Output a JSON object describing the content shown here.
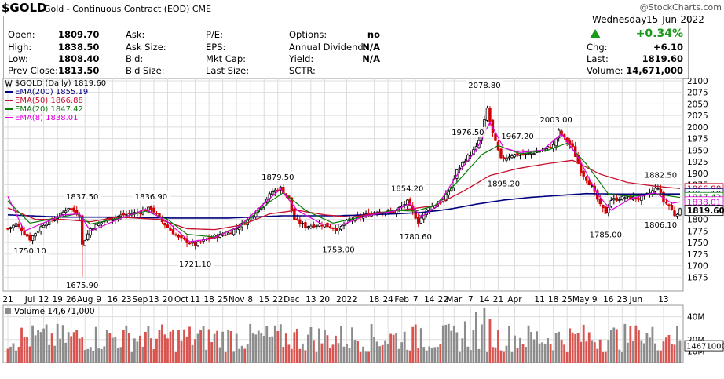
{
  "header": {
    "symbol": "$GOLD",
    "title": "Gold - Continuous Contract (EOD)",
    "exchange": "CME",
    "credit": "@StockCharts.com",
    "day": "Wednesday",
    "date": "15-Jun-2022",
    "pct_change": "+0.34%",
    "up_arrow_icon": "triangle-up",
    "up_color": "#1a9a1a"
  },
  "quote": {
    "open_label": "Open:",
    "open": "1809.70",
    "high_label": "High:",
    "high": "1838.50",
    "low_label": "Low:",
    "low": "1808.40",
    "prev_label": "Prev Close:",
    "prev": "1813.50",
    "ask_label": "Ask:",
    "ask_size_label": "Ask Size:",
    "bid_label": "Bid:",
    "bid_size_label": "Bid Size:",
    "pe_label": "P/E:",
    "eps_label": "EPS:",
    "mktcap_label": "Mkt Cap:",
    "last_size_label": "Last Size:",
    "options_label": "Options:",
    "options": "no",
    "div_label": "Annual Dividend:",
    "div": "N/A",
    "yield_label": "Yield:",
    "yield": "N/A",
    "sctr_label": "SCTR:",
    "chg_label": "Chg:",
    "chg": "+6.10",
    "last_label": "Last:",
    "last": "1819.60",
    "volume_label": "Volume:",
    "volume": "14,671,000"
  },
  "legend": [
    {
      "text": "$GOLD (Daily) 1819.60",
      "color": "#000000"
    },
    {
      "text": "EMA(200) 1855.19",
      "color": "#00007f"
    },
    {
      "text": "EMA(50) 1866.88",
      "color": "#c8102e"
    },
    {
      "text": "EMA(20) 1847.42",
      "color": "#0a7a0a"
    },
    {
      "text": "EMA(8) 1838.01",
      "color": "#e000e0"
    }
  ],
  "volume_legend": "Volume 14,671,000",
  "colors": {
    "up": "#000000",
    "down": "#d00000",
    "vol_up": "#8c8c8c",
    "vol_down": "#d9534f",
    "grid": "#dddddd"
  },
  "chart_data": [
    {
      "type": "candlestick",
      "title": "$GOLD (Daily)",
      "ylim": [
        1645,
        2105
      ],
      "yticks": [
        1675,
        1700,
        1725,
        1750,
        1775,
        1800,
        1825,
        1850,
        1875,
        1900,
        1925,
        1950,
        1975,
        2000,
        2025,
        2050,
        2075,
        2100
      ],
      "x_tick_labels": [
        "21",
        "Jul",
        "12",
        "19",
        "26",
        "Aug",
        "9",
        "16",
        "23",
        "Sep",
        "13",
        "20",
        "Oct",
        "11",
        "18",
        "25",
        "Nov",
        "8",
        "15",
        "22",
        "Dec",
        "13",
        "20",
        "2022",
        "18",
        "24",
        "Feb",
        "7",
        "14",
        "22",
        "Mar",
        "7",
        "14",
        "21",
        "Apr",
        "11",
        "18",
        "25",
        "May",
        "9",
        "16",
        "23",
        "Jun",
        "13"
      ],
      "x_tick_index": [
        0,
        8,
        13,
        18,
        23,
        28,
        33,
        38,
        43,
        48,
        53,
        58,
        63,
        68,
        73,
        78,
        83,
        88,
        93,
        98,
        103,
        110,
        115,
        123,
        133,
        138,
        143,
        148,
        153,
        158,
        162,
        168,
        173,
        178,
        184,
        193,
        198,
        203,
        208,
        213,
        218,
        223,
        228,
        238
      ],
      "x_count": 245,
      "annotations": [
        {
          "i": 8,
          "v": 1750.1,
          "label": "1750.10",
          "pos": "below"
        },
        {
          "i": 27,
          "v": 1675.9,
          "label": "1675.90",
          "pos": "below"
        },
        {
          "i": 27,
          "v": 1837.5,
          "label": "1837.50",
          "pos": "above",
          "at": 1844
        },
        {
          "i": 52,
          "v": 1836.9,
          "label": "1836.90",
          "pos": "above",
          "at": 1844
        },
        {
          "i": 68,
          "v": 1721.1,
          "label": "1721.10",
          "pos": "below"
        },
        {
          "i": 98,
          "v": 1879.5,
          "label": "1879.50",
          "pos": "above",
          "at": 1886
        },
        {
          "i": 120,
          "v": 1753.0,
          "label": "1753.00",
          "pos": "below"
        },
        {
          "i": 145,
          "v": 1854.2,
          "label": "1854.20",
          "pos": "above",
          "at": 1861
        },
        {
          "i": 148,
          "v": 1780.6,
          "label": "1780.60",
          "pos": "below"
        },
        {
          "i": 167,
          "v": 1976.5,
          "label": "1976.50",
          "pos": "above",
          "at": 1983
        },
        {
          "i": 173,
          "v": 2078.8,
          "label": "2078.80",
          "pos": "above",
          "at": 2085
        },
        {
          "i": 180,
          "v": 1895.2,
          "label": "1895.20",
          "pos": "below"
        },
        {
          "i": 185,
          "v": 1967.2,
          "label": "1967.20",
          "pos": "above",
          "at": 1974
        },
        {
          "i": 199,
          "v": 2003.0,
          "label": "2003.00",
          "pos": "above",
          "at": 2010
        },
        {
          "i": 217,
          "v": 1785.0,
          "label": "1785.00",
          "pos": "below"
        },
        {
          "i": 237,
          "v": 1882.5,
          "label": "1882.50",
          "pos": "above",
          "at": 1890
        },
        {
          "i": 237,
          "v": 1806.1,
          "label": "1806.10",
          "pos": "below"
        }
      ],
      "price_anchors": [
        [
          0,
          1780
        ],
        [
          3,
          1790
        ],
        [
          8,
          1758
        ],
        [
          13,
          1790
        ],
        [
          18,
          1805
        ],
        [
          22,
          1826
        ],
        [
          26,
          1810
        ],
        [
          27,
          1745
        ],
        [
          30,
          1780
        ],
        [
          36,
          1800
        ],
        [
          42,
          1810
        ],
        [
          47,
          1815
        ],
        [
          52,
          1825
        ],
        [
          56,
          1795
        ],
        [
          62,
          1760
        ],
        [
          68,
          1745
        ],
        [
          73,
          1760
        ],
        [
          80,
          1770
        ],
        [
          86,
          1793
        ],
        [
          92,
          1830
        ],
        [
          96,
          1860
        ],
        [
          99,
          1868
        ],
        [
          102,
          1845
        ],
        [
          104,
          1800
        ],
        [
          108,
          1785
        ],
        [
          114,
          1790
        ],
        [
          120,
          1778
        ],
        [
          124,
          1800
        ],
        [
          128,
          1805
        ],
        [
          134,
          1818
        ],
        [
          140,
          1815
        ],
        [
          145,
          1838
        ],
        [
          149,
          1795
        ],
        [
          152,
          1820
        ],
        [
          158,
          1842
        ],
        [
          161,
          1870
        ],
        [
          163,
          1905
        ],
        [
          166,
          1930
        ],
        [
          170,
          1955
        ],
        [
          172,
          1985
        ],
        [
          174,
          2040
        ],
        [
          176,
          1985
        ],
        [
          179,
          1930
        ],
        [
          183,
          1940
        ],
        [
          188,
          1940
        ],
        [
          193,
          1948
        ],
        [
          198,
          1960
        ],
        [
          200,
          1990
        ],
        [
          205,
          1955
        ],
        [
          208,
          1905
        ],
        [
          212,
          1870
        ],
        [
          215,
          1830
        ],
        [
          217,
          1815
        ],
        [
          219,
          1842
        ],
        [
          224,
          1848
        ],
        [
          229,
          1845
        ],
        [
          232,
          1853
        ],
        [
          236,
          1870
        ],
        [
          238,
          1840
        ],
        [
          240,
          1830
        ],
        [
          242,
          1810
        ],
        [
          244,
          1819.6
        ]
      ],
      "ema_anchors": {
        "ema200": [
          [
            0,
            1810
          ],
          [
            20,
            1805
          ],
          [
            40,
            1805
          ],
          [
            60,
            1803
          ],
          [
            80,
            1803
          ],
          [
            100,
            1808
          ],
          [
            120,
            1808
          ],
          [
            140,
            1812
          ],
          [
            150,
            1815
          ],
          [
            160,
            1822
          ],
          [
            170,
            1833
          ],
          [
            180,
            1842
          ],
          [
            190,
            1848
          ],
          [
            200,
            1852
          ],
          [
            210,
            1856
          ],
          [
            220,
            1855
          ],
          [
            230,
            1855
          ],
          [
            244,
            1855.19
          ]
        ],
        "ema50": [
          [
            0,
            1825
          ],
          [
            10,
            1800
          ],
          [
            20,
            1800
          ],
          [
            30,
            1795
          ],
          [
            40,
            1805
          ],
          [
            55,
            1800
          ],
          [
            65,
            1780
          ],
          [
            75,
            1778
          ],
          [
            85,
            1788
          ],
          [
            95,
            1812
          ],
          [
            105,
            1820
          ],
          [
            115,
            1810
          ],
          [
            125,
            1805
          ],
          [
            135,
            1815
          ],
          [
            145,
            1822
          ],
          [
            155,
            1830
          ],
          [
            165,
            1860
          ],
          [
            175,
            1895
          ],
          [
            185,
            1910
          ],
          [
            195,
            1920
          ],
          [
            205,
            1928
          ],
          [
            215,
            1898
          ],
          [
            225,
            1880
          ],
          [
            235,
            1872
          ],
          [
            244,
            1866.88
          ]
        ],
        "ema20": [
          [
            0,
            1840
          ],
          [
            8,
            1792
          ],
          [
            15,
            1800
          ],
          [
            25,
            1812
          ],
          [
            30,
            1790
          ],
          [
            40,
            1802
          ],
          [
            50,
            1818
          ],
          [
            58,
            1800
          ],
          [
            65,
            1768
          ],
          [
            75,
            1762
          ],
          [
            85,
            1788
          ],
          [
            95,
            1838
          ],
          [
            100,
            1858
          ],
          [
            108,
            1820
          ],
          [
            118,
            1792
          ],
          [
            128,
            1805
          ],
          [
            140,
            1820
          ],
          [
            148,
            1818
          ],
          [
            155,
            1830
          ],
          [
            163,
            1880
          ],
          [
            172,
            1940
          ],
          [
            178,
            1960
          ],
          [
            186,
            1942
          ],
          [
            196,
            1950
          ],
          [
            203,
            1965
          ],
          [
            210,
            1920
          ],
          [
            218,
            1855
          ],
          [
            226,
            1850
          ],
          [
            236,
            1855
          ],
          [
            244,
            1847.42
          ]
        ],
        "ema8": [
          [
            0,
            1850
          ],
          [
            6,
            1775
          ],
          [
            12,
            1790
          ],
          [
            20,
            1810
          ],
          [
            26,
            1812
          ],
          [
            30,
            1775
          ],
          [
            40,
            1800
          ],
          [
            50,
            1822
          ],
          [
            58,
            1795
          ],
          [
            66,
            1752
          ],
          [
            74,
            1758
          ],
          [
            84,
            1785
          ],
          [
            94,
            1840
          ],
          [
            99,
            1866
          ],
          [
            105,
            1820
          ],
          [
            114,
            1790
          ],
          [
            122,
            1790
          ],
          [
            130,
            1808
          ],
          [
            140,
            1818
          ],
          [
            146,
            1835
          ],
          [
            150,
            1805
          ],
          [
            156,
            1830
          ],
          [
            164,
            1905
          ],
          [
            170,
            1950
          ],
          [
            175,
            2010
          ],
          [
            180,
            1955
          ],
          [
            186,
            1945
          ],
          [
            194,
            1950
          ],
          [
            201,
            1985
          ],
          [
            207,
            1935
          ],
          [
            214,
            1855
          ],
          [
            219,
            1820
          ],
          [
            226,
            1845
          ],
          [
            235,
            1858
          ],
          [
            241,
            1835
          ],
          [
            244,
            1838.01
          ]
        ]
      },
      "current_price_tag": "1819.60",
      "axis_tags": [
        {
          "v": 1866.88,
          "text": "1866.88",
          "color": "#c8102e"
        },
        {
          "v": 1855.19,
          "text": "1855.19",
          "color": "#00007f"
        },
        {
          "v": 1847.42,
          "text": "1847.42",
          "color": "#0a7a0a"
        },
        {
          "v": 1838.01,
          "text": "1838.01",
          "color": "#e000e0"
        },
        {
          "v": 1819.6,
          "text": "1819.60",
          "color": "#000000"
        }
      ]
    },
    {
      "type": "bar",
      "title": "Volume",
      "yticks_label": [
        "40M",
        "20M",
        "10M"
      ],
      "yticks_value": [
        40,
        20,
        10
      ],
      "ylim": [
        0,
        50
      ],
      "last_value_tag": "14671000",
      "volume_range_m": [
        9,
        34
      ],
      "peaks": [
        [
          170,
          44
        ],
        [
          173,
          48
        ],
        [
          175,
          38
        ],
        [
          166,
          36
        ],
        [
          150,
          30
        ],
        [
          229,
          28
        ],
        [
          240,
          24
        ]
      ]
    }
  ]
}
